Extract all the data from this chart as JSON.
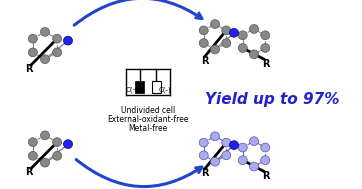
{
  "background_color": "#ffffff",
  "arrow_color": "#2244cc",
  "node_color": "#888888",
  "node_edge": "#555555",
  "bond_color": "#888888",
  "n_color": "#2222ee",
  "bottom_node_color": "#aaaaee",
  "bottom_node_edge": "#5555aa",
  "bottom_bond_color": "#6666aa",
  "yield_text": "Yield up to 97%",
  "yield_color": "#2222cc",
  "yield_fontsize": 11,
  "cell_text": [
    "Undivided cell",
    "External-oxidant-free",
    "Metal-free"
  ],
  "cell_fontsize": 5.5,
  "r_label": "R",
  "r_fontsize": 7
}
